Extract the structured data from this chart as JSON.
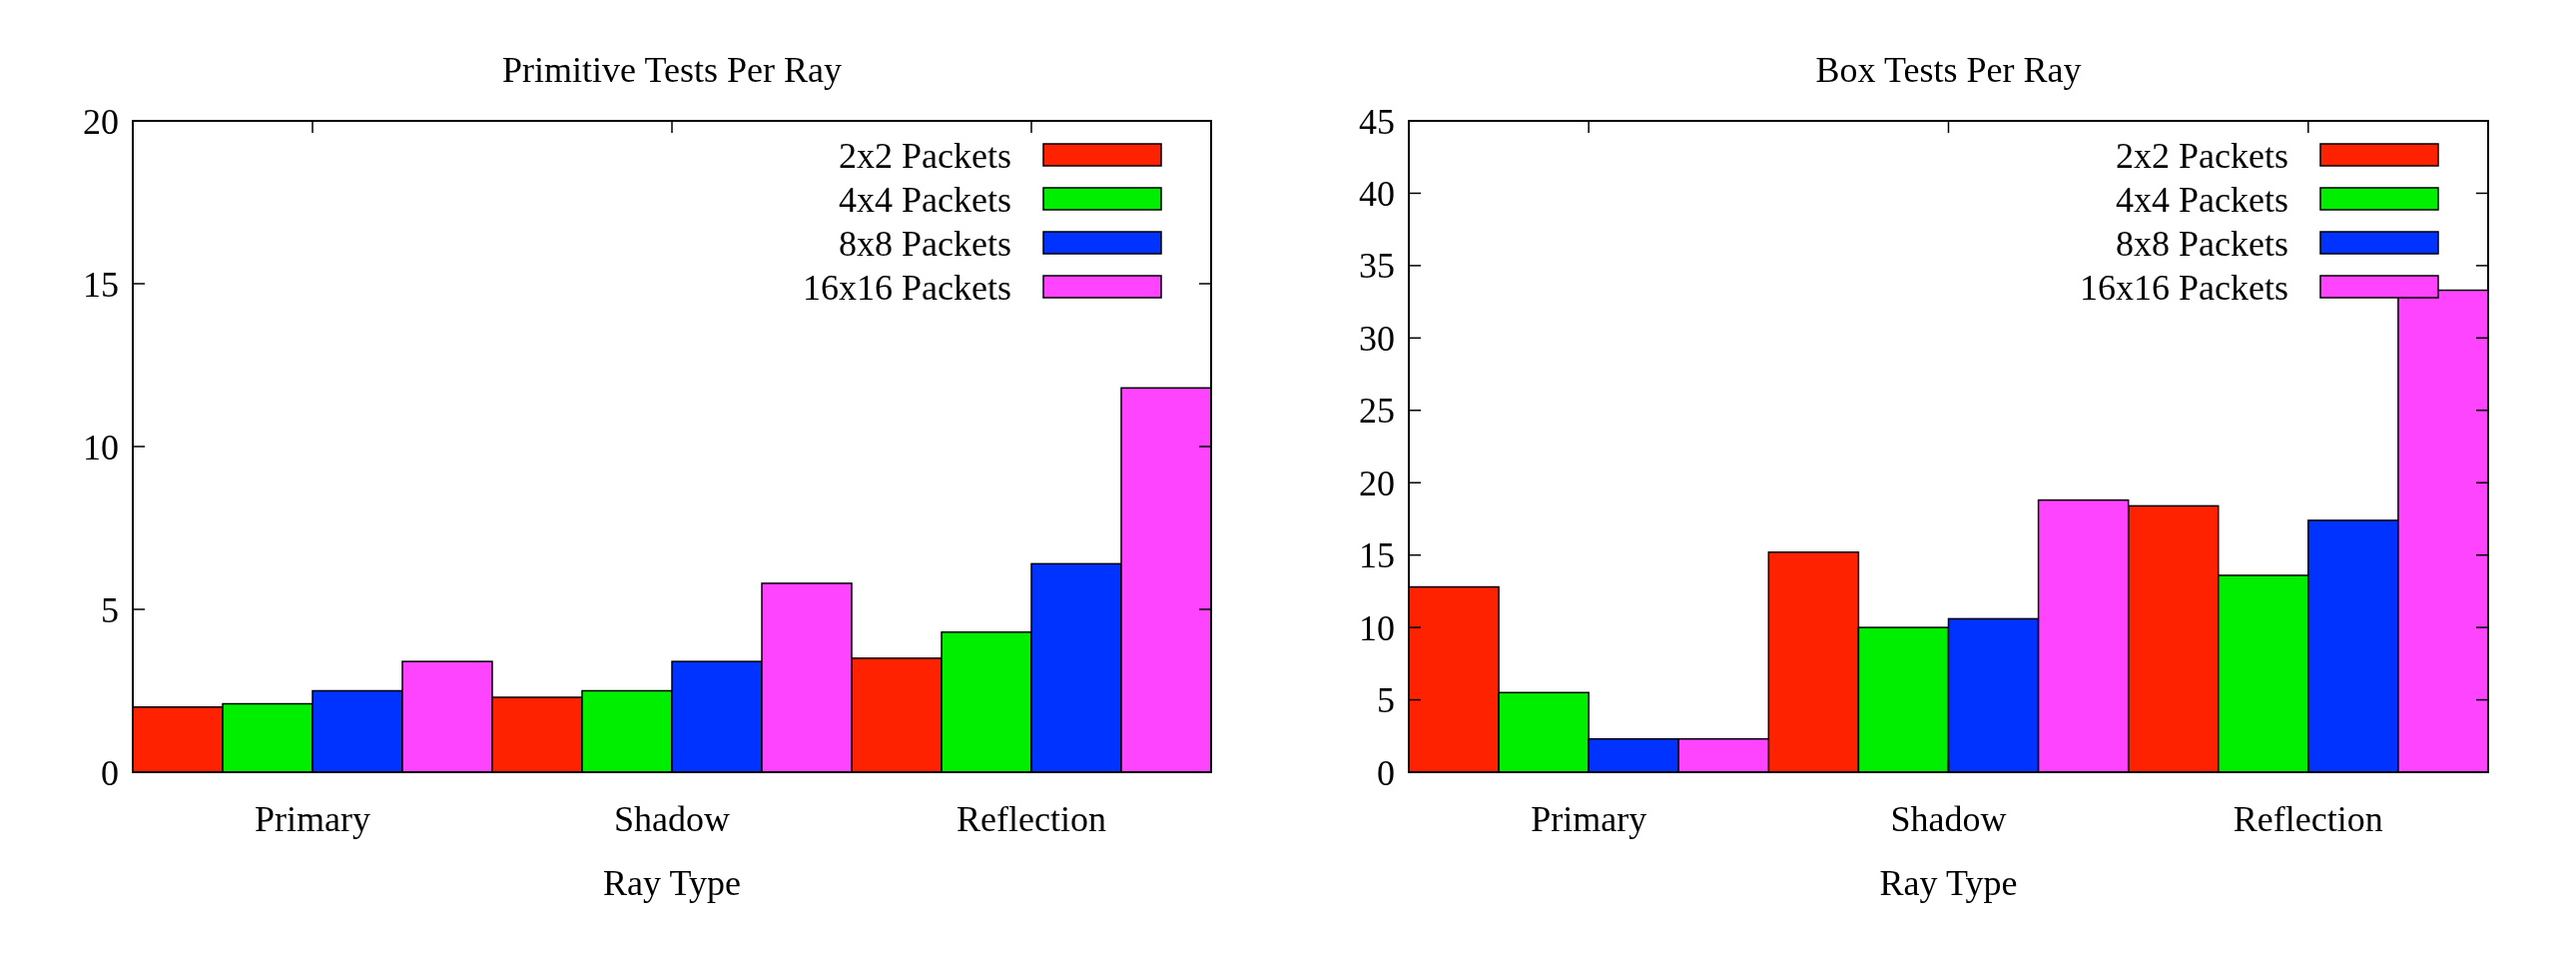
{
  "chart_data": [
    {
      "type": "bar",
      "title": "Primitive Tests Per Ray",
      "xlabel": "Ray Type",
      "categories": [
        "Primary",
        "Shadow",
        "Reflection"
      ],
      "ylim": [
        0,
        20
      ],
      "yticks": [
        0,
        5,
        10,
        15,
        20
      ],
      "legend": "top right",
      "series": [
        {
          "name": "2x2 Packets",
          "color": "#ff2200",
          "values": [
            2.0,
            2.3,
            3.5
          ]
        },
        {
          "name": "4x4 Packets",
          "color": "#00ee00",
          "values": [
            2.1,
            2.5,
            4.3
          ]
        },
        {
          "name": "8x8 Packets",
          "color": "#0033ff",
          "values": [
            2.5,
            3.4,
            6.4
          ]
        },
        {
          "name": "16x16 Packets",
          "color": "#ff44ff",
          "values": [
            3.4,
            5.8,
            11.8
          ]
        }
      ]
    },
    {
      "type": "bar",
      "title": "Box Tests Per Ray",
      "xlabel": "Ray Type",
      "categories": [
        "Primary",
        "Shadow",
        "Reflection"
      ],
      "ylim": [
        0,
        45
      ],
      "yticks": [
        0,
        5,
        10,
        15,
        20,
        25,
        30,
        35,
        40,
        45
      ],
      "legend": "top right",
      "series": [
        {
          "name": "2x2 Packets",
          "color": "#ff2200",
          "values": [
            12.8,
            15.2,
            18.4
          ]
        },
        {
          "name": "4x4 Packets",
          "color": "#00ee00",
          "values": [
            5.5,
            10.0,
            13.6
          ]
        },
        {
          "name": "8x8 Packets",
          "color": "#0033ff",
          "values": [
            2.3,
            10.6,
            17.4
          ]
        },
        {
          "name": "16x16 Packets",
          "color": "#ff44ff",
          "values": [
            2.3,
            18.8,
            33.3
          ]
        }
      ]
    }
  ]
}
